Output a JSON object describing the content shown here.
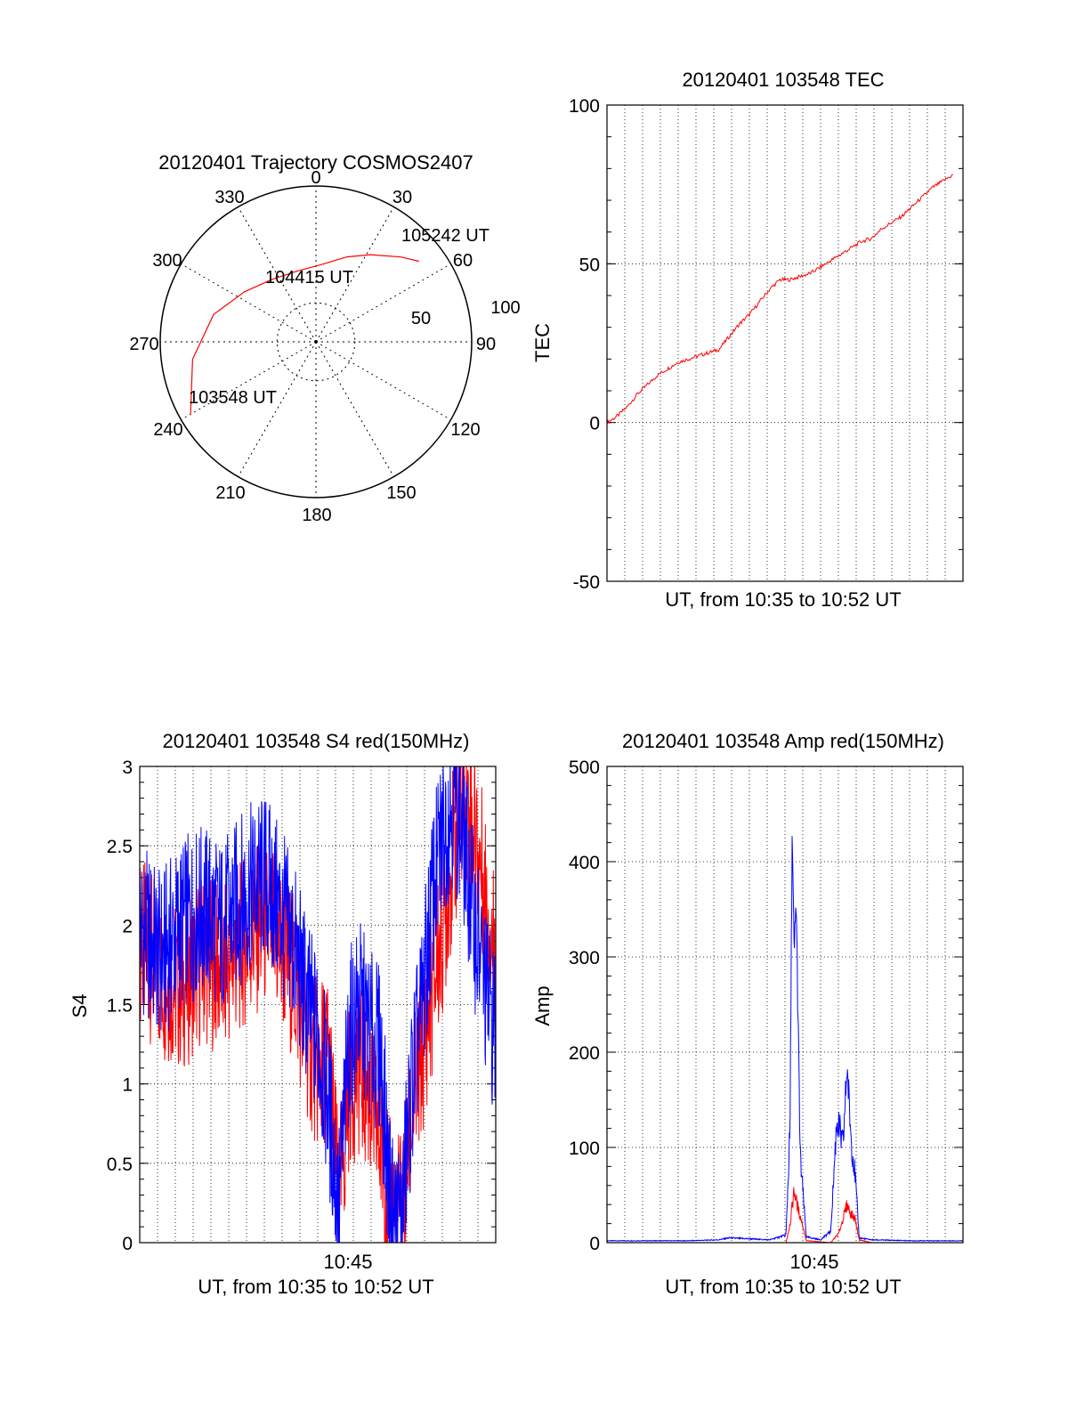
{
  "chart_data": [
    {
      "type": "polar",
      "title": "20120401 Trajectory COSMOS2407",
      "azimuth_labels": [
        "0",
        "30",
        "60",
        "90",
        "120",
        "150",
        "180",
        "210",
        "240",
        "270",
        "300",
        "330"
      ],
      "radial_labels": [
        "50",
        "100"
      ],
      "radial_range": [
        0,
        100
      ],
      "grid": true,
      "series": [
        {
          "color": "#ff0000",
          "points_az_r": [
            [
              240,
              93
            ],
            [
              262,
              80
            ],
            [
              285,
              68
            ],
            [
              305,
              56
            ],
            [
              325,
              49
            ],
            [
              345,
              47
            ],
            [
              5,
              50
            ],
            [
              20,
              58
            ],
            [
              32,
              66
            ],
            [
              45,
              77
            ],
            [
              52,
              84
            ]
          ]
        }
      ],
      "annotations": [
        {
          "text": "105242 UT",
          "az": 52,
          "r": 84
        },
        {
          "text": "104415 UT",
          "az": 345,
          "r": 47
        },
        {
          "text": "103548 UT",
          "az": 240,
          "r": 93
        }
      ]
    },
    {
      "type": "line",
      "title": "20120401 103548 TEC",
      "xlabel": "UT, from 10:35 to 10:52 UT",
      "ylabel": "TEC",
      "ylim": [
        -50,
        100
      ],
      "yticks": [
        "-50",
        "0",
        "50",
        "100"
      ],
      "xlim_minutes": [
        0,
        17.5
      ],
      "grid": true,
      "series": [
        {
          "color": "#ff0000",
          "x_minutes": [
            0,
            0.5,
            1,
            1.5,
            2,
            2.5,
            3,
            3.5,
            4,
            4.5,
            5,
            5.5,
            6,
            6.5,
            7,
            7.5,
            8,
            8.5,
            9,
            9.5,
            10,
            10.5,
            11,
            11.5,
            12,
            12.5,
            13,
            13.5,
            14,
            14.5,
            15,
            15.5,
            16,
            16.5,
            17
          ],
          "values": [
            0,
            2,
            5,
            9,
            12,
            15,
            17,
            19,
            20,
            21,
            22,
            23,
            27,
            31,
            34,
            38,
            42,
            45,
            45,
            46,
            47,
            49,
            51,
            53,
            55,
            57,
            58,
            61,
            63,
            65,
            68,
            71,
            74,
            76,
            78
          ]
        }
      ]
    },
    {
      "type": "line",
      "title": "20120401 103548 S4 red(150MHz)",
      "xlabel": "UT, from 10:35 to 10:52 UT",
      "ylabel": "S4",
      "xtick_label": "10:45",
      "ylim": [
        0,
        3
      ],
      "yticks": [
        "0",
        "0.5",
        "1",
        "1.5",
        "2",
        "2.5",
        "3"
      ],
      "xlim_minutes": [
        0,
        17
      ],
      "grid": true,
      "series": [
        {
          "color": "#ff0000",
          "x_minutes": [
            0,
            1,
            2,
            3,
            4,
            5,
            6,
            7,
            7.5,
            8,
            8.5,
            9,
            9.5,
            10,
            10.5,
            11,
            11.5,
            12,
            12.5,
            13,
            13.5,
            14,
            14.5,
            15,
            15.5,
            16,
            16.5,
            17
          ],
          "values": [
            1.9,
            1.7,
            1.6,
            1.8,
            1.7,
            1.9,
            2.0,
            1.8,
            1.6,
            1.3,
            1.1,
            1.2,
            0.2,
            1.0,
            1.1,
            0.9,
            0.6,
            0.2,
            0.2,
            0.8,
            1.2,
            1.6,
            2.0,
            2.5,
            2.8,
            2.6,
            2.2,
            1.8
          ]
        },
        {
          "color": "#0000ff",
          "x_minutes": [
            0,
            1,
            2,
            3,
            4,
            5,
            6,
            7,
            7.5,
            8,
            8.5,
            9,
            9.5,
            10,
            10.5,
            11,
            11.5,
            12,
            12.5,
            13,
            13.5,
            14,
            14.5,
            15,
            15.5,
            16,
            16.5,
            17
          ],
          "values": [
            2.0,
            1.8,
            2.0,
            2.1,
            2.0,
            2.2,
            2.3,
            2.0,
            1.8,
            1.5,
            1.3,
            0.9,
            0.2,
            1.3,
            1.5,
            1.3,
            1.2,
            0.15,
            0.15,
            1.0,
            1.5,
            2.2,
            2.6,
            2.8,
            2.5,
            2.0,
            1.6,
            1.3
          ]
        }
      ]
    },
    {
      "type": "line",
      "title": "20120401 103548 Amp red(150MHz)",
      "xlabel": "UT, from 10:35 to 10:52 UT",
      "ylabel": "Amp",
      "xtick_label": "10:45",
      "ylim": [
        0,
        500
      ],
      "yticks": [
        "0",
        "100",
        "200",
        "300",
        "400",
        "500"
      ],
      "xlim_minutes": [
        0,
        17.5
      ],
      "grid": true,
      "series": [
        {
          "color": "#0000ff",
          "x_minutes": [
            0,
            2,
            4,
            5.5,
            6,
            8,
            8.8,
            9.0,
            9.1,
            9.2,
            9.3,
            9.5,
            9.8,
            10.5,
            11,
            11.3,
            11.6,
            11.8,
            12.0,
            12.2,
            12.4,
            13,
            15,
            17.5
          ],
          "values": [
            2,
            2,
            2,
            3,
            5,
            3,
            8,
            120,
            430,
            300,
            360,
            90,
            6,
            3,
            12,
            130,
            100,
            185,
            110,
            70,
            5,
            3,
            2,
            2
          ]
        },
        {
          "color": "#ff0000",
          "x_minutes": [
            0,
            8.8,
            9.0,
            9.2,
            9.4,
            9.6,
            9.8,
            11,
            11.4,
            11.8,
            12.0,
            12.2,
            12.4,
            13,
            17.5
          ],
          "values": [
            0,
            0,
            20,
            55,
            35,
            20,
            2,
            0,
            10,
            40,
            30,
            25,
            3,
            0,
            0
          ]
        }
      ]
    }
  ]
}
